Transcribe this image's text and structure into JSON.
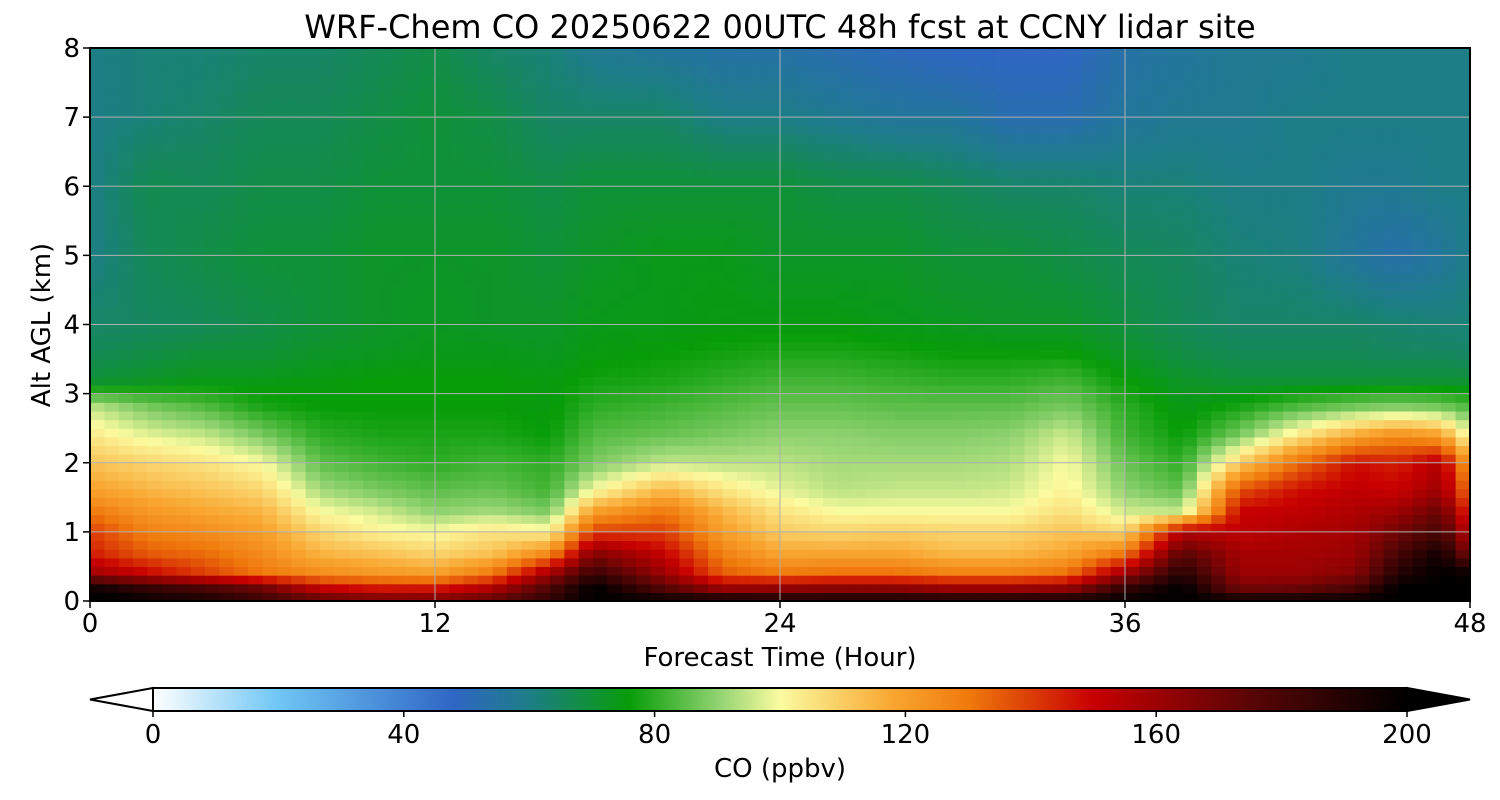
{
  "chart_data": {
    "type": "heatmap",
    "title": "WRF-Chem CO  20250622 00UTC 48h fcst at CCNY lidar site",
    "xlabel": "Forecast Time (Hour)",
    "ylabel": "Alt AGL (km)",
    "xlim": [
      0,
      48
    ],
    "ylim": [
      0,
      8
    ],
    "xticks": [
      0,
      12,
      24,
      36,
      48
    ],
    "yticks": [
      0,
      1,
      2,
      3,
      4,
      5,
      6,
      7,
      8
    ],
    "grid": true,
    "colorbar": {
      "label": "CO  (ppbv)",
      "range": [
        0,
        200
      ],
      "ticks": [
        0,
        40,
        80,
        120,
        160,
        200
      ],
      "extend": "both",
      "placement": "bottom",
      "stops": [
        {
          "value": 0,
          "color": "#ffffff"
        },
        {
          "value": 20,
          "color": "#6fc6f5"
        },
        {
          "value": 48,
          "color": "#2f66c4"
        },
        {
          "value": 60,
          "color": "#1d7e87"
        },
        {
          "value": 76,
          "color": "#079d08"
        },
        {
          "value": 90,
          "color": "#8fd26f"
        },
        {
          "value": 100,
          "color": "#fbfba0"
        },
        {
          "value": 118,
          "color": "#f9a630"
        },
        {
          "value": 130,
          "color": "#f07a0c"
        },
        {
          "value": 150,
          "color": "#c80000"
        },
        {
          "value": 175,
          "color": "#5a0505"
        },
        {
          "value": 200,
          "color": "#000000"
        }
      ]
    },
    "x": [
      0,
      2,
      4,
      6,
      8,
      10,
      12,
      14,
      16,
      17.5,
      20,
      22,
      24,
      26,
      28,
      30,
      32,
      34,
      36,
      38,
      40,
      42,
      44,
      45.5,
      47,
      48
    ],
    "y": [
      0,
      0.2,
      0.4,
      0.7,
      1,
      1.3,
      1.6,
      2,
      2.4,
      2.8,
      3.2,
      3.6,
      4,
      5,
      6,
      7,
      8
    ],
    "z": [
      [
        205,
        198,
        195,
        185,
        176,
        172,
        170,
        175,
        188,
        200,
        200,
        200,
        198,
        198,
        198,
        198,
        198,
        198,
        200,
        200,
        200,
        200,
        200,
        200,
        200,
        200
      ],
      [
        195,
        185,
        178,
        170,
        150,
        145,
        145,
        155,
        178,
        200,
        175,
        158,
        160,
        162,
        162,
        158,
        158,
        160,
        185,
        200,
        168,
        170,
        178,
        200,
        200,
        200
      ],
      [
        160,
        150,
        140,
        130,
        125,
        122,
        120,
        130,
        160,
        185,
        160,
        135,
        130,
        132,
        132,
        128,
        128,
        132,
        160,
        190,
        160,
        160,
        165,
        190,
        200,
        198
      ],
      [
        145,
        135,
        132,
        125,
        115,
        112,
        108,
        112,
        125,
        165,
        150,
        128,
        118,
        118,
        118,
        114,
        114,
        118,
        130,
        175,
        158,
        158,
        160,
        180,
        195,
        165
      ],
      [
        140,
        128,
        125,
        120,
        108,
        102,
        100,
        105,
        102,
        140,
        140,
        120,
        110,
        108,
        110,
        108,
        108,
        112,
        108,
        155,
        152,
        156,
        158,
        170,
        180,
        152
      ],
      [
        130,
        122,
        118,
        115,
        100,
        96,
        90,
        92,
        88,
        120,
        130,
        115,
        105,
        100,
        100,
        100,
        100,
        106,
        96,
        95,
        150,
        152,
        156,
        160,
        172,
        140
      ],
      [
        120,
        115,
        112,
        108,
        92,
        88,
        85,
        86,
        82,
        100,
        115,
        105,
        98,
        94,
        95,
        95,
        96,
        102,
        90,
        85,
        138,
        148,
        152,
        150,
        160,
        130
      ],
      [
        112,
        108,
        105,
        100,
        85,
        82,
        80,
        82,
        80,
        88,
        95,
        94,
        94,
        92,
        92,
        92,
        93,
        100,
        86,
        80,
        110,
        132,
        148,
        145,
        155,
        120
      ],
      [
        104,
        98,
        95,
        88,
        80,
        78,
        78,
        78,
        76,
        84,
        86,
        88,
        90,
        90,
        89,
        89,
        90,
        96,
        82,
        76,
        88,
        104,
        118,
        125,
        120,
        98
      ],
      [
        95,
        88,
        84,
        78,
        76,
        76,
        76,
        76,
        75,
        80,
        82,
        84,
        86,
        86,
        85,
        85,
        85,
        88,
        80,
        74,
        78,
        84,
        88,
        90,
        88,
        84
      ],
      [
        70,
        72,
        74,
        74,
        75,
        76,
        76,
        76,
        75,
        77,
        78,
        80,
        82,
        82,
        81,
        80,
        80,
        82,
        76,
        72,
        70,
        70,
        70,
        70,
        70,
        70
      ],
      [
        66,
        68,
        70,
        70,
        72,
        73,
        74,
        74,
        73,
        75,
        76,
        77,
        78,
        78,
        77,
        76,
        76,
        76,
        72,
        68,
        66,
        66,
        66,
        65,
        65,
        64
      ],
      [
        64,
        65,
        66,
        68,
        70,
        72,
        73,
        72,
        72,
        74,
        74,
        75,
        75,
        75,
        74,
        73,
        72,
        72,
        69,
        66,
        64,
        64,
        64,
        63,
        62,
        62
      ],
      [
        60,
        66,
        68,
        70,
        70,
        72,
        72,
        72,
        70,
        72,
        74,
        74,
        72,
        72,
        72,
        70,
        70,
        68,
        66,
        65,
        62,
        61,
        56,
        53,
        56,
        60
      ],
      [
        60,
        67,
        66,
        68,
        68,
        70,
        70,
        70,
        68,
        70,
        70,
        70,
        70,
        68,
        68,
        66,
        64,
        64,
        62,
        62,
        60,
        60,
        58,
        58,
        60,
        60
      ],
      [
        60,
        62,
        64,
        66,
        66,
        68,
        70,
        68,
        64,
        64,
        64,
        60,
        60,
        58,
        56,
        56,
        52,
        52,
        56,
        58,
        58,
        60,
        60,
        60,
        60,
        60
      ],
      [
        60,
        62,
        62,
        64,
        64,
        66,
        68,
        64,
        62,
        58,
        56,
        54,
        54,
        52,
        50,
        48,
        48,
        48,
        54,
        56,
        58,
        58,
        60,
        60,
        60,
        60
      ]
    ]
  }
}
